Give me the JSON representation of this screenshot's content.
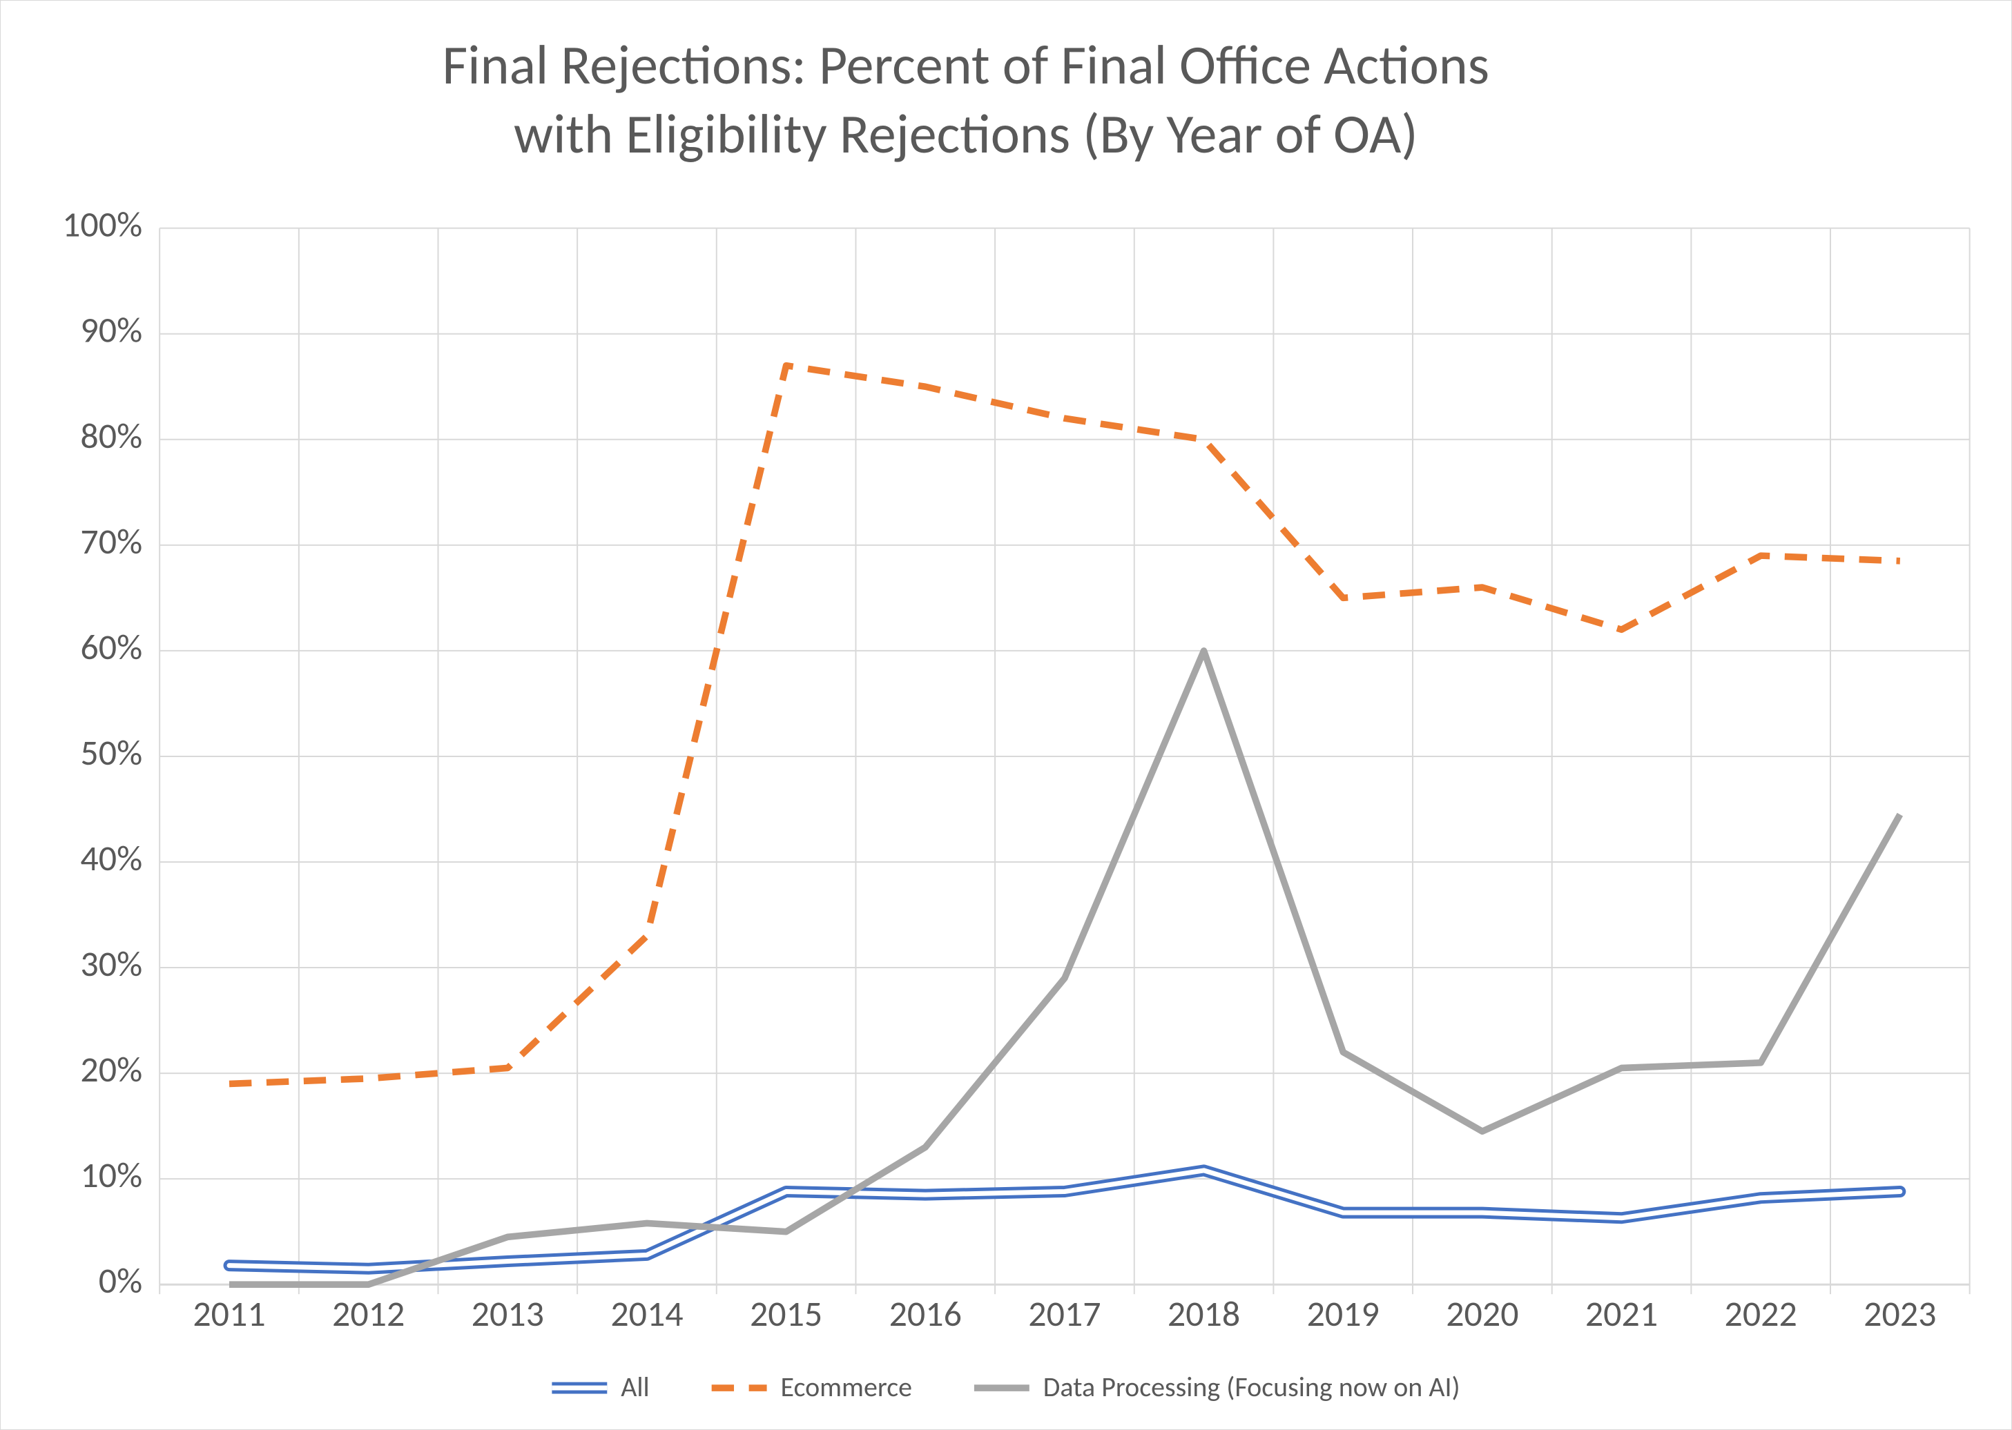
{
  "chart": {
    "type": "line",
    "title_line1": "Final Rejections: Percent of Final Office Actions",
    "title_line2": "with Eligibility Rejections (By Year of OA)",
    "title_fontsize": 40,
    "title_color": "#595959",
    "background_color": "#ffffff",
    "border_color": "#d9d9d9",
    "grid_color": "#d9d9d9",
    "axis_label_color": "#595959",
    "axis_fontsize": 26,
    "legend_fontsize": 20,
    "categories": [
      "2011",
      "2012",
      "2013",
      "2014",
      "2015",
      "2016",
      "2017",
      "2018",
      "2019",
      "2020",
      "2021",
      "2022",
      "2023"
    ],
    "ylim": [
      0,
      100
    ],
    "ytick_step": 10,
    "ytick_suffix": "%",
    "series": [
      {
        "name": "All",
        "color": "#4472c4",
        "stroke_width": 3,
        "dash": "",
        "double": true,
        "values": [
          1.8,
          1.5,
          2.2,
          2.8,
          8.8,
          8.5,
          8.8,
          10.8,
          6.8,
          6.8,
          6.3,
          8.2,
          8.8
        ]
      },
      {
        "name": "Ecommerce",
        "color": "#ed7d31",
        "stroke_width": 6,
        "dash": "18 12",
        "double": false,
        "values": [
          19,
          19.5,
          20.5,
          33,
          87,
          85,
          82,
          80,
          65,
          66,
          62,
          69,
          68.5
        ]
      },
      {
        "name": "Data Processing (Focusing now on AI)",
        "color": "#a6a6a6",
        "stroke_width": 6,
        "dash": "",
        "double": false,
        "values": [
          0,
          0,
          4.5,
          5.8,
          5,
          13,
          29,
          60,
          22,
          14.5,
          20.5,
          21,
          44.5
        ]
      }
    ]
  }
}
